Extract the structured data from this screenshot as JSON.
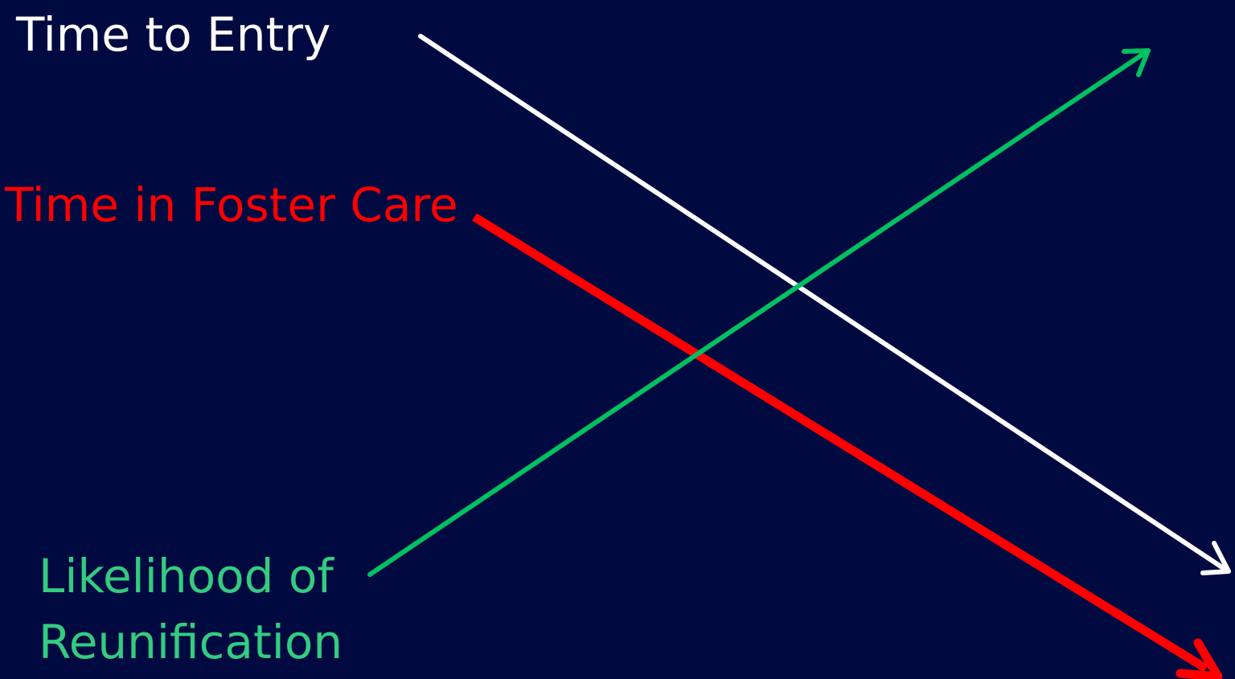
{
  "labels": {
    "time_to_entry": "Time to Entry",
    "time_in_foster_care": "Time in Foster Care",
    "likelihood_line1": "Likelihood of",
    "likelihood_line2": "Reunification"
  },
  "colors": {
    "background": "#000940",
    "time_to_entry": "#FFFFFF",
    "time_in_foster_care": "#FF0000",
    "likelihood_of_reunification": "#00C060",
    "likelihood_text": "#33CC80"
  },
  "trends": {
    "time_to_entry": "decreasing",
    "time_in_foster_care": "decreasing",
    "likelihood_of_reunification": "increasing"
  }
}
